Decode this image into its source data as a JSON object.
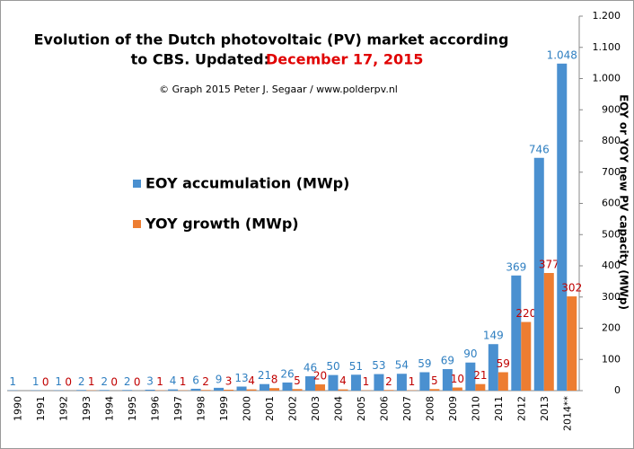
{
  "chart_data": {
    "type": "bar",
    "title_lines": [
      "Evolution  of the Dutch photovoltaic  (PV) market according",
      "to CBS. Updated:"
    ],
    "title_date": "December 17, 2015",
    "subtitle": "© Graph 2015 Peter J. Segaar / www.polderpv.nl",
    "y_axis_label": "EOY or YOY new PV capacity (MWp)",
    "categories": [
      "1990",
      "1991",
      "1992",
      "1993",
      "1994",
      "1995",
      "1996",
      "1997",
      "1998",
      "1999",
      "2000",
      "2001",
      "2002",
      "2003",
      "2004",
      "2005",
      "2006",
      "2007",
      "2008",
      "2009",
      "2010",
      "2011",
      "2012",
      "2013",
      "2014**"
    ],
    "series": [
      {
        "name": "EOY accumulation (MWp)",
        "color": "#4a90d0",
        "label_color": "#2f7fc1",
        "values": [
          1,
          1,
          1,
          2,
          2,
          2,
          3,
          4,
          6,
          9,
          13,
          21,
          26,
          46,
          50,
          51,
          53,
          54,
          59,
          69,
          90,
          149,
          369,
          746,
          1048
        ],
        "value_labels": [
          "1",
          "1",
          "1",
          "2",
          "2",
          "2",
          "3",
          "4",
          "6",
          "9",
          "13",
          "21",
          "26",
          "46",
          "50",
          "51",
          "53",
          "54",
          "59",
          "69",
          "90",
          "149",
          "369",
          "746",
          "1.048"
        ]
      },
      {
        "name": "YOY growth (MWp)",
        "color": "#ed7d31",
        "label_color": "#c00000",
        "values": [
          null,
          0,
          0,
          1,
          0,
          0,
          1,
          1,
          2,
          3,
          4,
          8,
          5,
          20,
          4,
          1,
          2,
          1,
          5,
          10,
          21,
          59,
          220,
          377,
          302
        ]
      }
    ],
    "ylim": [
      0,
      1200
    ],
    "yticks": [
      0,
      100,
      200,
      300,
      400,
      500,
      600,
      700,
      800,
      900,
      {
        "value": 1000,
        "label": "1.000"
      },
      {
        "value": 1100,
        "label": "1.100"
      },
      {
        "value": 1200,
        "label": "1.200"
      }
    ],
    "grid": false
  }
}
